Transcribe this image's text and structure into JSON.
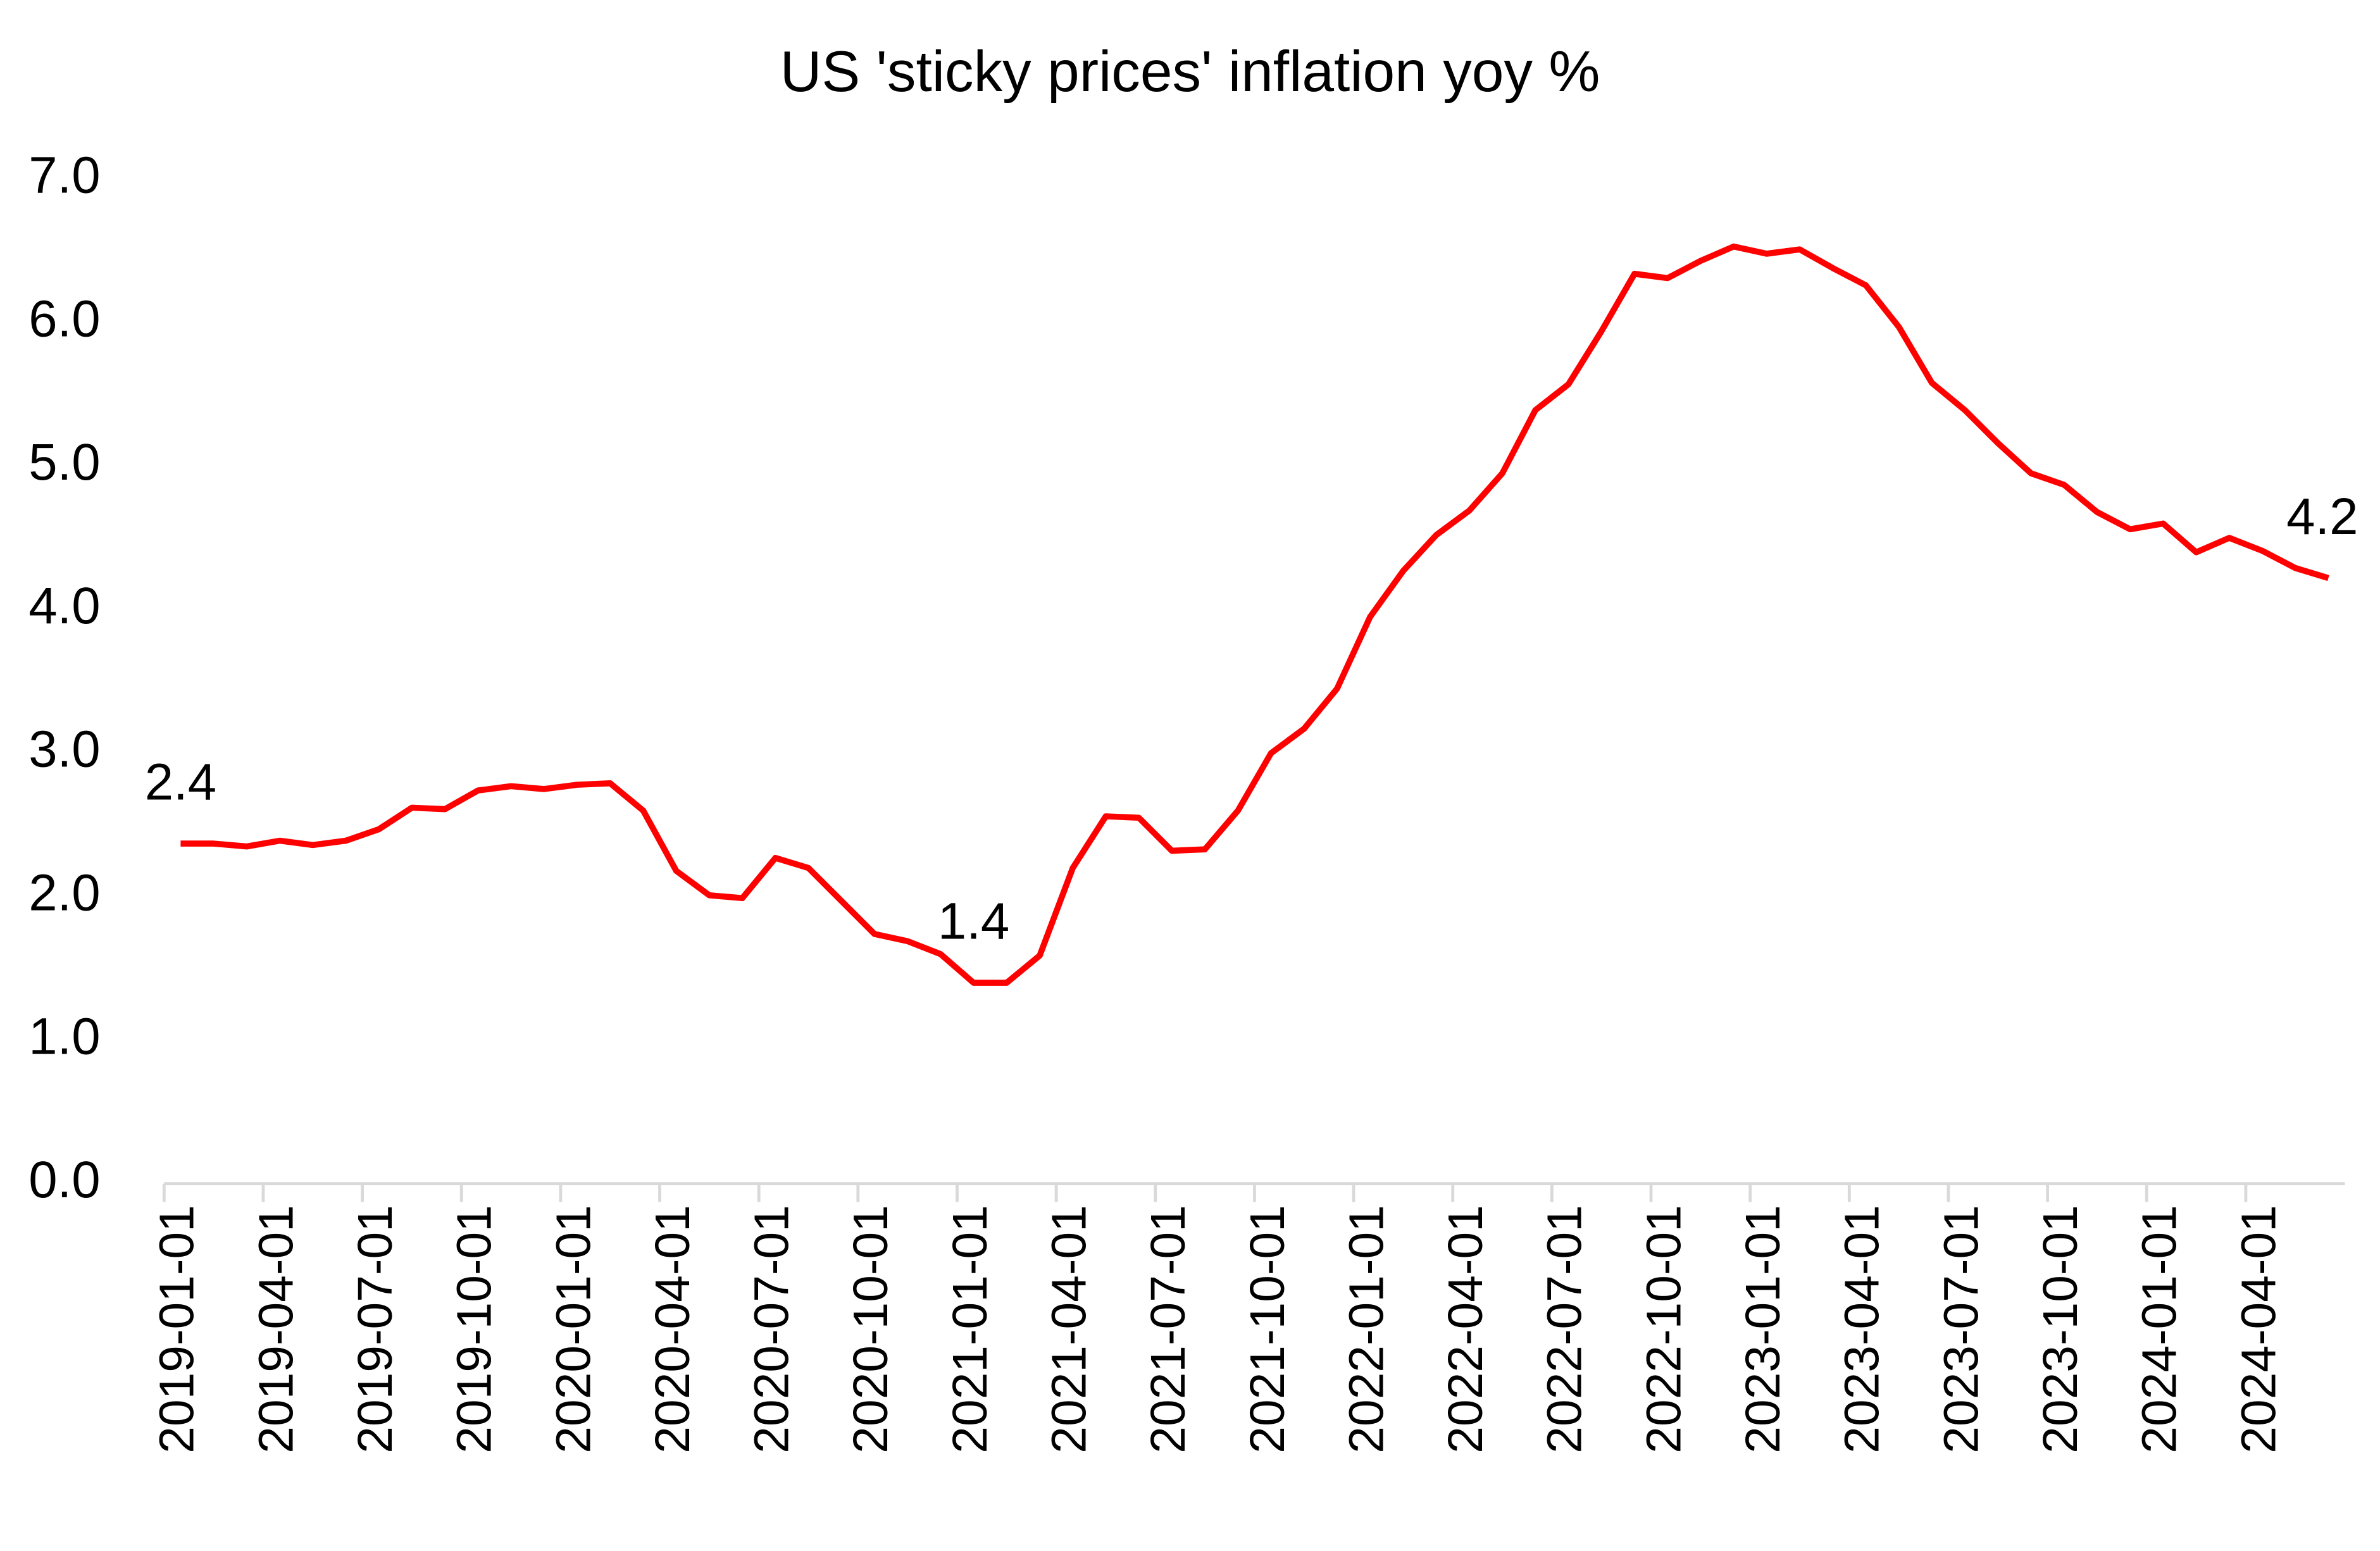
{
  "chart_data": {
    "type": "line",
    "title": "US 'sticky prices' inflation yoy %",
    "categories": [
      "2019-01-01",
      null,
      null,
      "2019-04-01",
      null,
      null,
      "2019-07-01",
      null,
      null,
      "2019-10-01",
      null,
      null,
      "2020-01-01",
      null,
      null,
      "2020-04-01",
      null,
      null,
      "2020-07-01",
      null,
      null,
      "2020-10-01",
      null,
      null,
      "2021-01-01",
      null,
      null,
      "2021-04-01",
      null,
      null,
      "2021-07-01",
      null,
      null,
      "2021-10-01",
      null,
      null,
      "2022-01-01",
      null,
      null,
      "2022-04-01",
      null,
      null,
      "2022-07-01",
      null,
      null,
      "2022-10-01",
      null,
      null,
      "2023-01-01",
      null,
      null,
      "2023-04-01",
      null,
      null,
      "2023-07-01",
      null,
      null,
      "2023-10-01",
      null,
      null,
      "2024-01-01",
      null,
      null,
      "2024-04-01",
      null,
      null
    ],
    "series": [
      {
        "color": "#ff0000",
        "values": [
          2.37,
          2.37,
          2.35,
          2.39,
          2.36,
          2.39,
          2.47,
          2.62,
          2.61,
          2.74,
          2.77,
          2.75,
          2.78,
          2.79,
          2.6,
          2.18,
          2.01,
          1.99,
          2.27,
          2.2,
          1.97,
          1.74,
          1.69,
          1.6,
          1.4,
          1.4,
          1.59,
          2.2,
          2.56,
          2.55,
          2.32,
          2.33,
          2.6,
          3.0,
          3.17,
          3.45,
          3.95,
          4.27,
          4.52,
          4.69,
          4.95,
          5.39,
          5.57,
          5.94,
          6.34,
          6.31,
          6.43,
          6.53,
          6.48,
          6.51,
          6.38,
          6.26,
          5.97,
          5.58,
          5.39,
          5.16,
          4.95,
          4.87,
          4.68,
          4.56,
          4.6,
          4.4,
          4.5,
          4.41,
          4.29,
          4.22
        ],
        "value_labels": [
          "2.4",
          null,
          null,
          null,
          null,
          null,
          null,
          null,
          null,
          null,
          null,
          null,
          null,
          null,
          null,
          null,
          null,
          null,
          null,
          null,
          null,
          null,
          null,
          null,
          "1.4",
          null,
          null,
          null,
          null,
          null,
          null,
          null,
          null,
          null,
          null,
          null,
          null,
          null,
          null,
          null,
          null,
          null,
          null,
          null,
          null,
          null,
          null,
          null,
          null,
          null,
          null,
          null,
          null,
          null,
          null,
          null,
          null,
          null,
          null,
          null,
          null,
          null,
          null,
          null,
          null,
          "4.2"
        ]
      }
    ],
    "ylim": [
      0,
      7
    ],
    "yticks": [
      {
        "value": 0,
        "label": "0.0"
      },
      {
        "value": 1,
        "label": "1.0"
      },
      {
        "value": 2,
        "label": "2.0"
      },
      {
        "value": 3,
        "label": "3.0"
      },
      {
        "value": 4,
        "label": "4.0"
      },
      {
        "value": 5,
        "label": "5.0"
      },
      {
        "value": 6,
        "label": "6.0"
      },
      {
        "value": 7,
        "label": "7.0"
      }
    ],
    "grid": false
  }
}
